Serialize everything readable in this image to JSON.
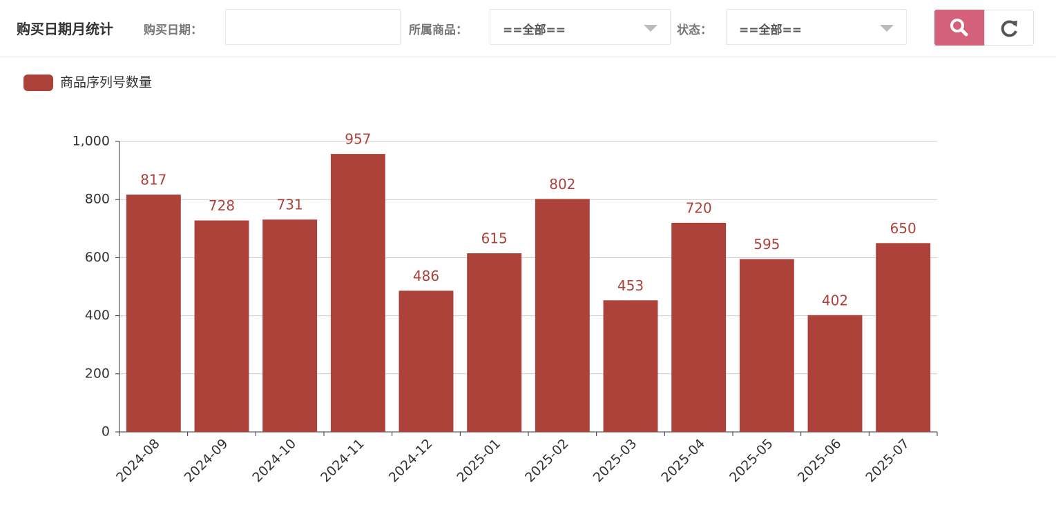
{
  "header": {
    "title": "购买日期月统计",
    "filters": [
      {
        "label": "购买日期："
      },
      {
        "label": "所属商品：",
        "value": "==全部=="
      },
      {
        "label": "状态：",
        "value": "==全部=="
      }
    ]
  },
  "chart_data": {
    "type": "bar",
    "legend": "top-left",
    "grid": true,
    "categories": [
      "2024-08",
      "2024-09",
      "2024-10",
      "2024-11",
      "2024-12",
      "2025-01",
      "2025-02",
      "2025-03",
      "2025-04",
      "2025-05",
      "2025-06",
      "2025-07"
    ],
    "series": [
      {
        "name": "商品序列号数量",
        "color": "#ad423b",
        "values": [
          817,
          728,
          731,
          957,
          486,
          615,
          802,
          453,
          720,
          595,
          402,
          650
        ]
      }
    ],
    "ylim": [
      0,
      1000
    ],
    "yticks": [
      0,
      200,
      400,
      600,
      800,
      {
        "value": 1000,
        "label": "1,000"
      }
    ]
  }
}
